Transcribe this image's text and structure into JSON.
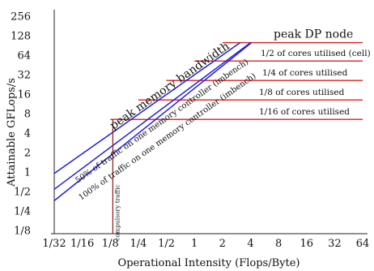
{
  "chart_data": {
    "type": "line",
    "title": "",
    "xlabel": "Operational Intensity (Flops/Byte)",
    "ylabel": "Attainable GFLops/s",
    "log_base": 2,
    "xlim": [
      0.03125,
      64
    ],
    "ylim": [
      0.125,
      256
    ],
    "x_ticks": [
      {
        "value": 0.03125,
        "label": "1/32"
      },
      {
        "value": 0.0625,
        "label": "1/16"
      },
      {
        "value": 0.125,
        "label": "1/8"
      },
      {
        "value": 0.25,
        "label": "1/4"
      },
      {
        "value": 0.5,
        "label": "1/2"
      },
      {
        "value": 1,
        "label": "1"
      },
      {
        "value": 2,
        "label": "2"
      },
      {
        "value": 4,
        "label": "4"
      },
      {
        "value": 8,
        "label": "8"
      },
      {
        "value": 16,
        "label": "16"
      },
      {
        "value": 32,
        "label": "32"
      },
      {
        "value": 64,
        "label": "64"
      }
    ],
    "y_ticks": [
      {
        "value": 256,
        "label": "256"
      },
      {
        "value": 128,
        "label": "128"
      },
      {
        "value": 64,
        "label": "64"
      },
      {
        "value": 32,
        "label": "32"
      },
      {
        "value": 16,
        "label": "16"
      },
      {
        "value": 8,
        "label": "8"
      },
      {
        "value": 4,
        "label": "4"
      },
      {
        "value": 2,
        "label": "2"
      },
      {
        "value": 1,
        "label": "1"
      },
      {
        "value": 0.5,
        "label": "1/2"
      },
      {
        "value": 0.25,
        "label": "1/4"
      },
      {
        "value": 0.125,
        "label": "1/8"
      }
    ],
    "grid": false,
    "bandwidth_roofs": [
      {
        "label": "peak memory bandwidth",
        "color": "#1f1fdd",
        "points": [
          [
            0.03125,
            0.95
          ],
          [
            3.1,
            100
          ]
        ]
      },
      {
        "label": "50% of traffic on one memory controller (imbench)",
        "color": "#1f1fdd",
        "points": [
          [
            0.03125,
            0.54
          ],
          [
            4.0,
            100
          ]
        ]
      },
      {
        "label": "100% of traffic on one memory controller (imbench)",
        "color": "#1f1fdd",
        "points": [
          [
            0.03125,
            0.36
          ],
          [
            4.1,
            100
          ]
        ]
      }
    ],
    "compute_roofs": [
      {
        "label": "peak DP node",
        "color": "#dd1f1f",
        "y": 100,
        "x_start": 2.0,
        "x_end": 64
      },
      {
        "label": "1/2 of cores utilised (cell)",
        "color": "#dd1f1f",
        "y": 52,
        "x_start": 1.0,
        "x_end": 64
      },
      {
        "label": "1/4 of cores utilised",
        "color": "#dd1f1f",
        "y": 26,
        "x_start": 0.5,
        "x_end": 64
      },
      {
        "label": "1/8 of cores utilised",
        "color": "#dd1f1f",
        "y": 13,
        "x_start": 0.25,
        "x_end": 64
      },
      {
        "label": "1/16 of cores utilised",
        "color": "#dd1f1f",
        "y": 6.5,
        "x_start": 0.125,
        "x_end": 64
      }
    ],
    "compulsory_traffic": {
      "label": "compulsory traffic",
      "color": "#8b1a1a",
      "x": 0.133,
      "y_top": 6.5
    }
  }
}
